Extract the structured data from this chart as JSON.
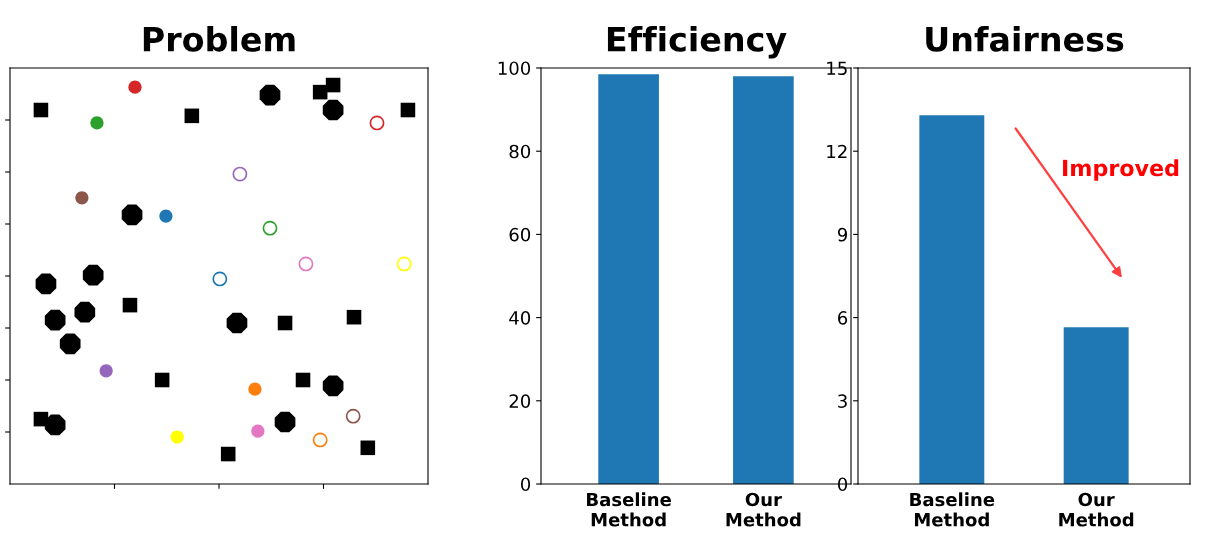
{
  "chart_data": [
    {
      "type": "other",
      "title": "Problem"
    },
    {
      "type": "bar",
      "title": "Efficiency",
      "categories": [
        "Baseline\nMethod",
        "Our\nMethod"
      ],
      "values": [
        98.5,
        98.0
      ],
      "color": "#1f77b4",
      "ylim": [
        0,
        100
      ],
      "yticks": [
        0,
        20,
        40,
        60,
        80,
        100
      ],
      "grid": false,
      "legend": false
    },
    {
      "type": "bar",
      "title": "Unfairness",
      "categories": [
        "Baseline\nMethod",
        "Our\nMethod"
      ],
      "values": [
        13.3,
        5.65
      ],
      "color": "#1f77b4",
      "ylim": [
        0,
        15
      ],
      "yticks": [
        0,
        3,
        6,
        9,
        12,
        15
      ],
      "grid": false,
      "legend": false,
      "annotations": [
        "Improved"
      ]
    }
  ]
}
